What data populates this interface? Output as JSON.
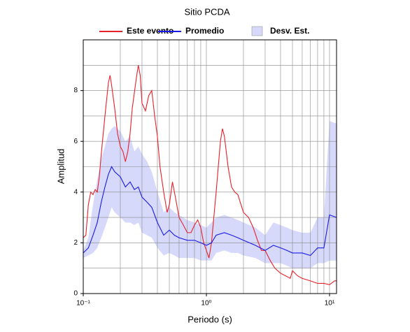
{
  "chart_data": {
    "type": "line",
    "title": "Sitio PCDA",
    "xlabel": "Periodo (s)",
    "ylabel": "Amplitud",
    "xscale": "log",
    "xlim": [
      0.1,
      11.4
    ],
    "ylim": [
      0,
      10
    ],
    "xticks": [
      {
        "value": 0.1,
        "label": "10⁻¹"
      },
      {
        "value": 1,
        "label": "10⁰"
      },
      {
        "value": 10,
        "label": "10¹"
      }
    ],
    "xminorticks": [
      0.2,
      0.3,
      0.4,
      0.5,
      0.6,
      0.7,
      0.8,
      0.9,
      2,
      3,
      4,
      5,
      6,
      7,
      8,
      9
    ],
    "yticks": [
      0,
      2,
      4,
      6,
      8
    ],
    "yminorticks": [
      1,
      3,
      5,
      7,
      9
    ],
    "grid": true,
    "legend": "top",
    "series": [
      {
        "name": "Este evento",
        "color": "#e8202a",
        "x": [
          0.1,
          0.105,
          0.11,
          0.115,
          0.12,
          0.125,
          0.13,
          0.135,
          0.14,
          0.15,
          0.16,
          0.165,
          0.17,
          0.18,
          0.19,
          0.2,
          0.21,
          0.22,
          0.23,
          0.24,
          0.25,
          0.27,
          0.28,
          0.29,
          0.3,
          0.32,
          0.34,
          0.36,
          0.38,
          0.4,
          0.42,
          0.45,
          0.48,
          0.5,
          0.53,
          0.56,
          0.6,
          0.65,
          0.7,
          0.75,
          0.8,
          0.85,
          0.9,
          0.95,
          1.0,
          1.05,
          1.1,
          1.2,
          1.3,
          1.35,
          1.4,
          1.5,
          1.6,
          1.7,
          1.8,
          2.0,
          2.2,
          2.4,
          2.6,
          2.8,
          3.0,
          3.3,
          3.6,
          4.0,
          4.4,
          4.8,
          5.0,
          5.5,
          6.0,
          7,
          8,
          9,
          10,
          11,
          11.4
        ],
        "values": [
          2.2,
          2.3,
          3.5,
          4.0,
          3.9,
          4.1,
          4.0,
          4.6,
          5.5,
          7.0,
          8.3,
          8.6,
          8.2,
          7.3,
          6.3,
          5.8,
          5.6,
          5.2,
          5.6,
          6.3,
          7.3,
          8.5,
          9.0,
          8.6,
          7.5,
          7.2,
          7.8,
          8.0,
          7.0,
          6.2,
          5.0,
          4.0,
          3.2,
          3.5,
          4.4,
          3.8,
          3.0,
          2.7,
          2.4,
          2.4,
          2.7,
          2.9,
          2.6,
          2.0,
          1.7,
          1.4,
          2.0,
          4.0,
          6.0,
          6.5,
          6.2,
          5.0,
          4.2,
          4.0,
          3.9,
          3.2,
          3.0,
          2.6,
          2.1,
          1.7,
          1.7,
          1.3,
          1.0,
          0.8,
          0.7,
          0.6,
          0.9,
          0.7,
          0.6,
          0.5,
          0.4,
          0.4,
          0.35,
          0.5,
          0.5
        ]
      },
      {
        "name": "Promedio",
        "color": "#1a1ae6",
        "x": [
          0.1,
          0.11,
          0.12,
          0.13,
          0.14,
          0.15,
          0.16,
          0.17,
          0.18,
          0.2,
          0.22,
          0.24,
          0.26,
          0.28,
          0.3,
          0.33,
          0.36,
          0.4,
          0.45,
          0.5,
          0.55,
          0.6,
          0.7,
          0.8,
          0.9,
          1.0,
          1.1,
          1.2,
          1.4,
          1.6,
          1.8,
          2.0,
          2.5,
          3.0,
          3.5,
          4.0,
          4.5,
          5,
          6,
          7,
          8,
          9,
          10,
          11.4
        ],
        "values": [
          1.6,
          1.8,
          2.3,
          2.8,
          3.6,
          4.2,
          4.7,
          5.0,
          4.8,
          4.6,
          4.2,
          4.4,
          4.1,
          4.2,
          3.8,
          3.6,
          3.4,
          2.8,
          2.3,
          2.5,
          2.3,
          2.2,
          2.1,
          2.1,
          2.0,
          1.9,
          2.0,
          2.3,
          2.4,
          2.3,
          2.2,
          2.1,
          1.9,
          1.7,
          1.9,
          1.8,
          1.7,
          1.6,
          1.6,
          1.5,
          1.8,
          1.8,
          3.1,
          3.0
        ]
      },
      {
        "name": "Desv. Est.",
        "color": "#d6d9fa",
        "x": [
          0.1,
          0.11,
          0.12,
          0.13,
          0.14,
          0.15,
          0.16,
          0.17,
          0.18,
          0.2,
          0.22,
          0.24,
          0.26,
          0.28,
          0.3,
          0.33,
          0.36,
          0.4,
          0.45,
          0.5,
          0.55,
          0.6,
          0.7,
          0.8,
          0.9,
          1.0,
          1.1,
          1.2,
          1.4,
          1.6,
          1.8,
          2.0,
          2.5,
          3.0,
          3.5,
          4.0,
          4.5,
          5,
          6,
          7,
          8,
          9,
          10,
          11.4
        ],
        "lower": [
          1.4,
          1.5,
          1.6,
          1.8,
          2.2,
          2.6,
          3.0,
          3.4,
          3.2,
          3.0,
          2.8,
          2.8,
          2.7,
          2.8,
          2.4,
          2.3,
          2.2,
          1.8,
          1.5,
          1.6,
          1.5,
          1.4,
          1.4,
          1.4,
          1.3,
          1.3,
          1.3,
          1.6,
          1.7,
          1.6,
          1.6,
          1.5,
          1.4,
          1.2,
          1.2,
          1.2,
          1.1,
          1.0,
          1.0,
          1.0,
          1.2,
          1.2,
          1.3,
          1.3
        ],
        "upper": [
          1.7,
          2.2,
          3.5,
          4.5,
          5.3,
          5.8,
          6.3,
          6.5,
          6.6,
          6.4,
          6.0,
          6.2,
          5.6,
          5.8,
          5.5,
          5.2,
          4.8,
          4.0,
          3.2,
          3.4,
          3.2,
          3.1,
          2.9,
          2.8,
          2.7,
          2.6,
          2.8,
          3.0,
          3.1,
          3.0,
          2.9,
          2.8,
          2.6,
          2.3,
          2.8,
          2.7,
          2.6,
          2.5,
          2.4,
          2.4,
          3.0,
          3.0,
          6.8,
          6.7
        ]
      }
    ]
  }
}
